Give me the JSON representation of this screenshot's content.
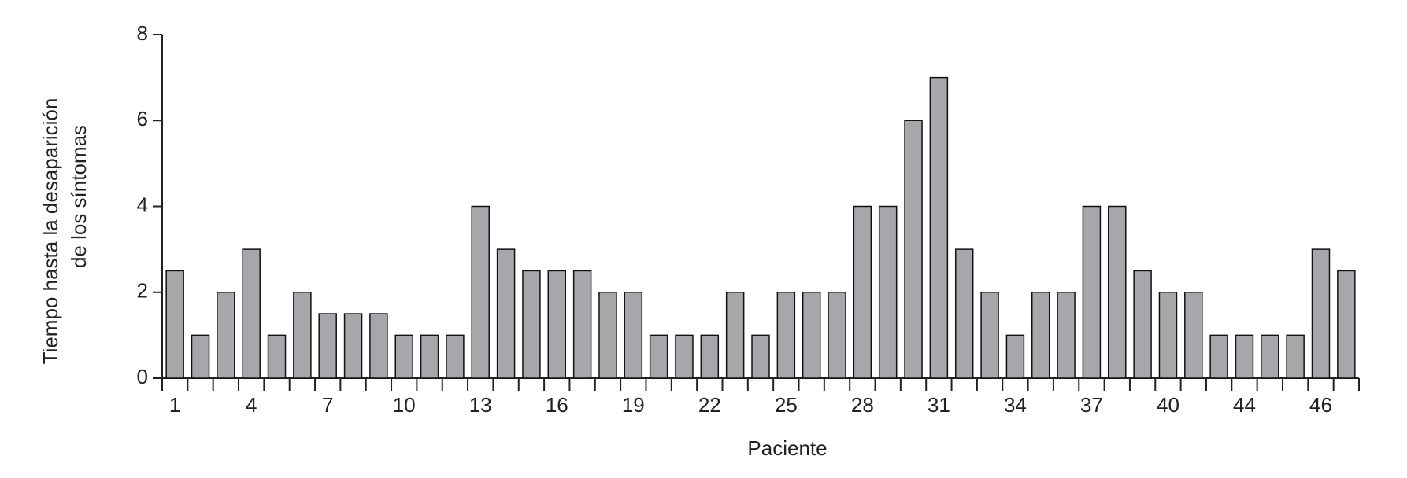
{
  "chart_data": {
    "type": "bar",
    "x_label": "Paciente",
    "y_label": [
      "Tiempo hasta la desaparición",
      "de los síntomas"
    ],
    "categories": [
      "1",
      null,
      null,
      "4",
      null,
      null,
      "7",
      null,
      null,
      "10",
      null,
      null,
      "13",
      null,
      null,
      "16",
      null,
      null,
      "19",
      null,
      null,
      "22",
      null,
      null,
      "25",
      null,
      null,
      "28",
      null,
      null,
      "31",
      null,
      null,
      "34",
      null,
      null,
      "37",
      null,
      null,
      "40",
      null,
      null,
      "44",
      null,
      null,
      "46",
      null
    ],
    "values": [
      2.5,
      1,
      2,
      3,
      1,
      2,
      1.5,
      1.5,
      1.5,
      1,
      1,
      1,
      4,
      3,
      2.5,
      2.5,
      2.5,
      2,
      2,
      1,
      1,
      1,
      2,
      1,
      2,
      2,
      2,
      4,
      4,
      6,
      7,
      3,
      2,
      1,
      2,
      2,
      4,
      4,
      2.5,
      2,
      2,
      1,
      1,
      1,
      1,
      3,
      2.5
    ],
    "color": "#a7a7ab",
    "ylim": [
      0,
      8
    ],
    "yticks": [
      0,
      2,
      4,
      6,
      8
    ],
    "grid": false
  }
}
